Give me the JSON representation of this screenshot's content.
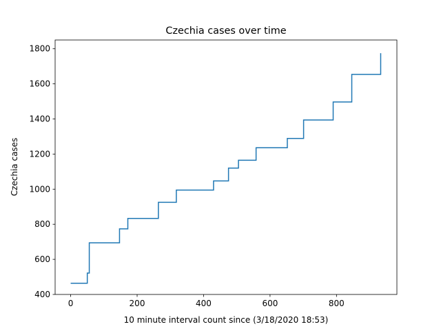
{
  "chart_data": {
    "type": "line",
    "title": "Czechia cases over time",
    "xlabel": "10 minute interval count since (3/18/2020 18:53)",
    "ylabel": "Czechia cases",
    "xlim": [
      -46.8,
      981.8
    ],
    "ylim": [
      400,
      1850
    ],
    "xticks": [
      0,
      200,
      400,
      600,
      800
    ],
    "yticks": [
      400,
      600,
      800,
      1000,
      1200,
      1400,
      1600,
      1800
    ],
    "grid": false,
    "line_color": "#1f77b4",
    "series": [
      {
        "step": "post",
        "x": [
          0,
          50,
          53,
          56,
          147,
          172,
          264,
          318,
          430,
          475,
          505,
          558,
          652,
          701,
          790,
          846,
          933
        ],
        "y": [
          464,
          522,
          522,
          694,
          774,
          833,
          925,
          995,
          1047,
          1120,
          1165,
          1236,
          1289,
          1394,
          1497,
          1654,
          1775
        ]
      }
    ]
  }
}
